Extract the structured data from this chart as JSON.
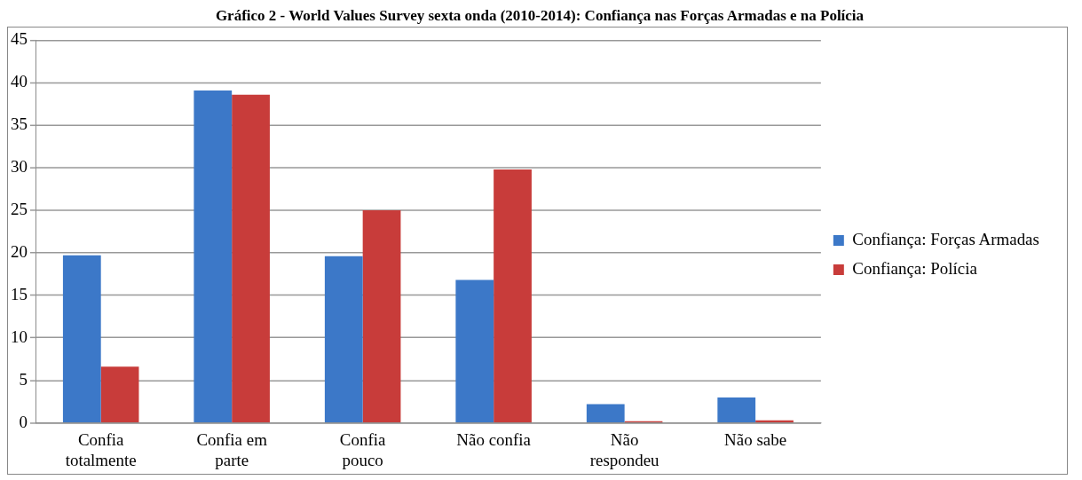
{
  "chart_data": {
    "type": "bar",
    "title": "Gráfico 2 - World Values Survey sexta onda (2010-2014): Confiança nas Forças Armadas e na Polícia",
    "categories": [
      "Confia totalmente",
      "Confia em parte",
      "Confia pouco",
      "Não confia",
      "Não respondeu",
      "Não sabe"
    ],
    "series": [
      {
        "name": "Confiança: Forças Armadas",
        "color": "#3c78c8",
        "values": [
          19.7,
          39.1,
          19.6,
          16.8,
          2.2,
          3.0
        ]
      },
      {
        "name": "Confiança: Polícia",
        "color": "#c83c3a",
        "values": [
          6.6,
          38.6,
          25.0,
          29.8,
          0.1,
          0.3
        ]
      }
    ],
    "ylim": [
      0,
      45
    ],
    "yticks": [
      0,
      5,
      10,
      15,
      20,
      25,
      30,
      35,
      40,
      45
    ],
    "grid": "y",
    "legend": "right"
  }
}
